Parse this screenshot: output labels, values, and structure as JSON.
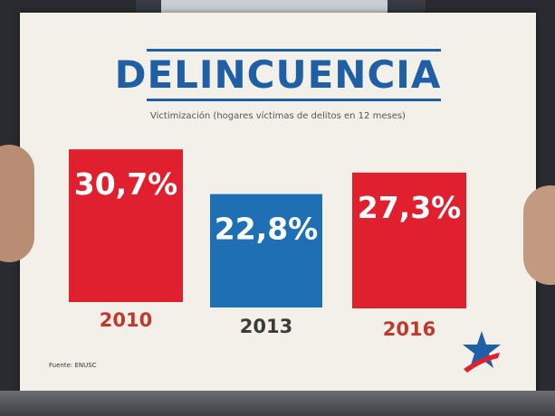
{
  "chart_data": {
    "type": "bar",
    "title": "DELINCUENCIA",
    "subtitle": "Victimización (hogares víctimas de delitos en 12 meses)",
    "categories": [
      "2010",
      "2013",
      "2016"
    ],
    "values": [
      30.7,
      22.8,
      27.3
    ],
    "value_labels": [
      "30,7%",
      "22,8%",
      "27,3%"
    ],
    "colors": [
      "#e0202e",
      "#1f6fb4",
      "#e0202e"
    ],
    "ylim": [
      0,
      35
    ],
    "grid": false,
    "legend": "none"
  },
  "source": "Fuente: ENUSC",
  "colors": {
    "accent_blue": "#1f5fa6",
    "accent_red": "#e0202e",
    "card_background": "#f3f0ea"
  }
}
